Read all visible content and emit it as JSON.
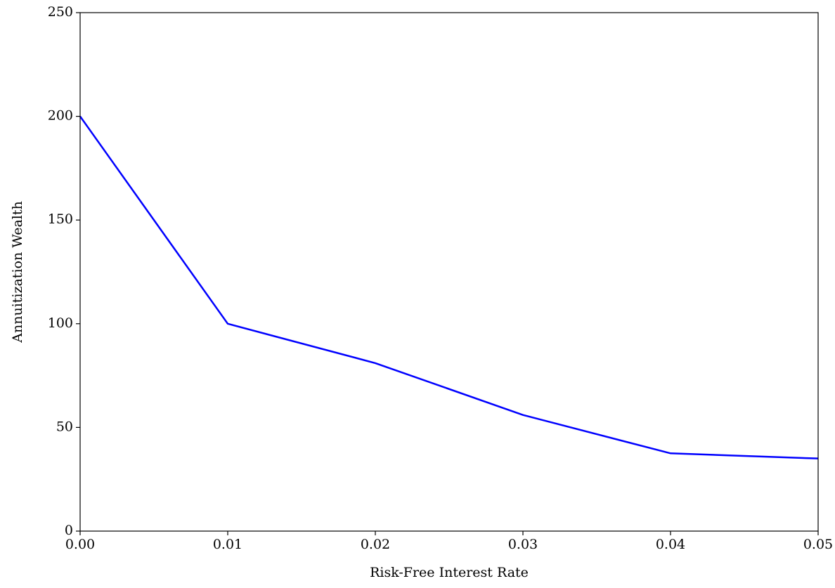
{
  "chart_data": {
    "type": "line",
    "x_label": "Risk-Free Interest Rate",
    "y_label": "Annuitization Wealth",
    "x": [
      0,
      0.01,
      0.02,
      0.03,
      0.04,
      0.05
    ],
    "series": [
      {
        "color": "#0000ff",
        "values": [
          200,
          100,
          81,
          56,
          37.5,
          35
        ]
      }
    ],
    "xlim": [
      0,
      0.05
    ],
    "xticks": [
      {
        "value": 0,
        "label": "0.00"
      },
      0.01,
      0.02,
      0.03,
      0.04,
      0.05
    ],
    "ylim": [
      0,
      250
    ],
    "yticks": [
      0,
      50,
      100,
      150,
      200,
      250
    ],
    "grid": false
  }
}
